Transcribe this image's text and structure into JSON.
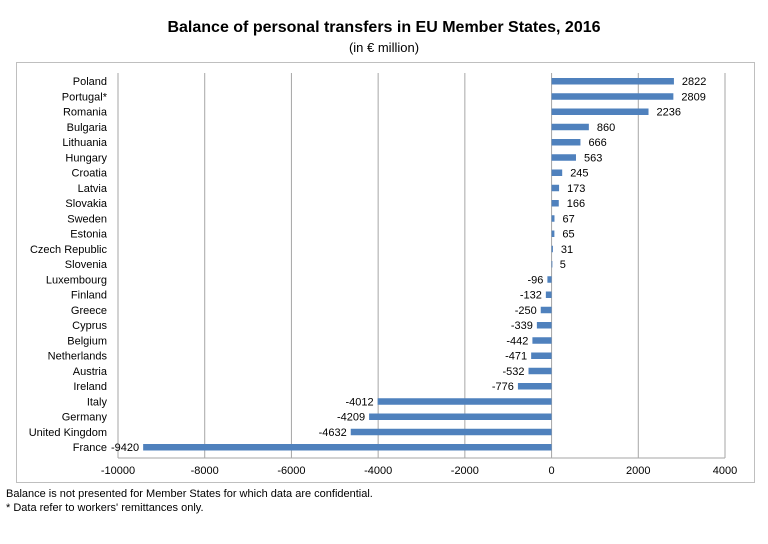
{
  "chart_data": {
    "type": "bar",
    "orientation": "horizontal",
    "title": "Balance of personal transfers in EU Member States, 2016",
    "subtitle": "(in € million)",
    "categories": [
      "Poland",
      "Portugal*",
      "Romania",
      "Bulgaria",
      "Lithuania",
      "Hungary",
      "Croatia",
      "Latvia",
      "Slovakia",
      "Sweden",
      "Estonia",
      "Czech Republic",
      "Slovenia",
      "Luxembourg",
      "Finland",
      "Greece",
      "Cyprus",
      "Belgium",
      "Netherlands",
      "Austria",
      "Ireland",
      "Italy",
      "Germany",
      "United Kingdom",
      "France"
    ],
    "values": [
      2822,
      2809,
      2236,
      860,
      666,
      563,
      245,
      173,
      166,
      67,
      65,
      31,
      5,
      -96,
      -132,
      -250,
      -339,
      -442,
      -471,
      -532,
      -776,
      -4012,
      -4209,
      -4632,
      -9420
    ],
    "xlim": [
      -10000,
      4000
    ],
    "xticks": [
      -10000,
      -8000,
      -6000,
      -4000,
      -2000,
      0,
      2000,
      4000
    ],
    "grid": true,
    "bar_color": "#4f81bd"
  },
  "footnotes": [
    "Balance is not presented for Member States for which data are confidential.",
    "* Data refer to workers' remittances only."
  ]
}
